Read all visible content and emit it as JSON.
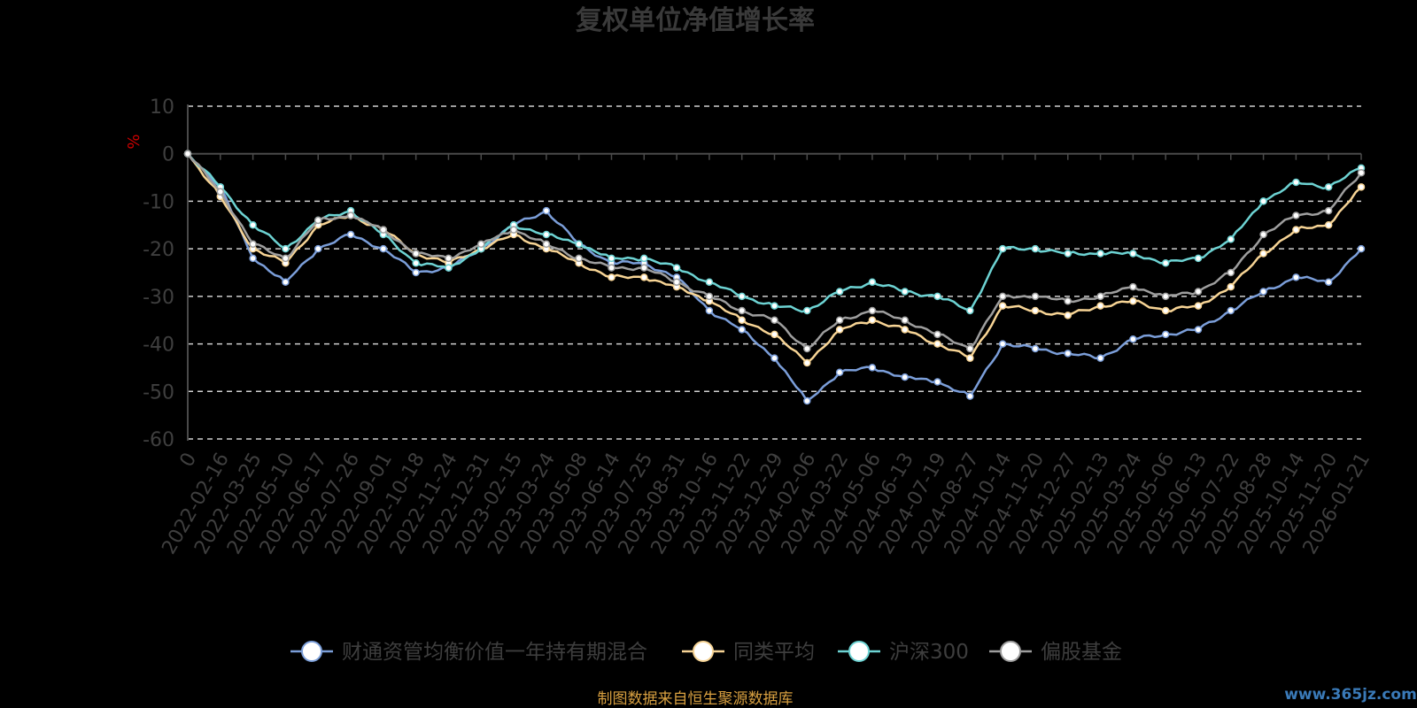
{
  "chart_data": {
    "type": "line",
    "title": "复权单位净值增长率",
    "ylabel": "%",
    "ylim": [
      -60,
      10
    ],
    "yticks": [
      "10",
      "0",
      "-10",
      "-20",
      "-30",
      "-40",
      "-50",
      "-60"
    ],
    "x_labels": [
      "0",
      "2022-02-16",
      "2022-03-25",
      "2022-05-10",
      "2022-06-17",
      "2022-07-26",
      "2022-09-01",
      "2022-10-18",
      "2022-11-24",
      "2022-12-31",
      "2023-02-15",
      "2023-03-24",
      "2023-05-08",
      "2023-06-14",
      "2023-07-25",
      "2023-08-31",
      "2023-10-16",
      "2023-11-22",
      "2023-12-29",
      "2024-02-06",
      "2024-03-22",
      "2024-05-06",
      "2024-06-13",
      "2024-07-19",
      "2024-08-27",
      "2024-10-14",
      "2024-11-20",
      "2024-12-27",
      "2025-02-13",
      "2025-03-24",
      "2025-05-06",
      "2025-06-13",
      "2025-07-22",
      "2025-08-28",
      "2025-10-14",
      "2025-11-20",
      "2026-01-21"
    ],
    "grid": "dashed horizontal",
    "legend_position": "bottom",
    "series": [
      {
        "name": "财通资管均衡价值一年持有期混合",
        "color": "#7b9ed9",
        "values": [
          0,
          -7,
          -22,
          -27,
          -20,
          -17,
          -20,
          -25,
          -24,
          -20,
          -15,
          -12,
          -19,
          -23,
          -23,
          -26,
          -33,
          -37,
          -43,
          -52,
          -46,
          -45,
          -47,
          -48,
          -51,
          -40,
          -41,
          -42,
          -43,
          -39,
          -38,
          -37,
          -33,
          -29,
          -26,
          -27,
          -20
        ]
      },
      {
        "name": "同类平均",
        "color": "#f7d495",
        "values": [
          0,
          -9,
          -20,
          -23,
          -15,
          -13,
          -16,
          -21,
          -23,
          -20,
          -17,
          -20,
          -23,
          -26,
          -26,
          -28,
          -31,
          -35,
          -38,
          -44,
          -37,
          -35,
          -37,
          -40,
          -43,
          -32,
          -33,
          -34,
          -32,
          -31,
          -33,
          -32,
          -28,
          -21,
          -16,
          -15,
          -7
        ]
      },
      {
        "name": "沪深300",
        "color": "#6dd3d3",
        "values": [
          0,
          -7,
          -15,
          -20,
          -14,
          -12,
          -17,
          -23,
          -24,
          -20,
          -15,
          -17,
          -19,
          -22,
          -22,
          -24,
          -27,
          -30,
          -32,
          -33,
          -29,
          -27,
          -29,
          -30,
          -33,
          -20,
          -20,
          -21,
          -21,
          -21,
          -23,
          -22,
          -18,
          -10,
          -6,
          -7,
          -3
        ]
      },
      {
        "name": "偏股基金",
        "color": "#9e9e9e",
        "values": [
          0,
          -8,
          -19,
          -22,
          -14,
          -13,
          -16,
          -21,
          -22,
          -19,
          -16,
          -19,
          -22,
          -24,
          -24,
          -27,
          -30,
          -33,
          -35,
          -41,
          -35,
          -33,
          -35,
          -38,
          -41,
          -30,
          -30,
          -31,
          -30,
          -28,
          -30,
          -29,
          -25,
          -17,
          -13,
          -12,
          -4
        ]
      }
    ]
  },
  "footer": {
    "source": "制图数据来自恒生聚源数据库",
    "watermark": "www.365jz.com"
  }
}
